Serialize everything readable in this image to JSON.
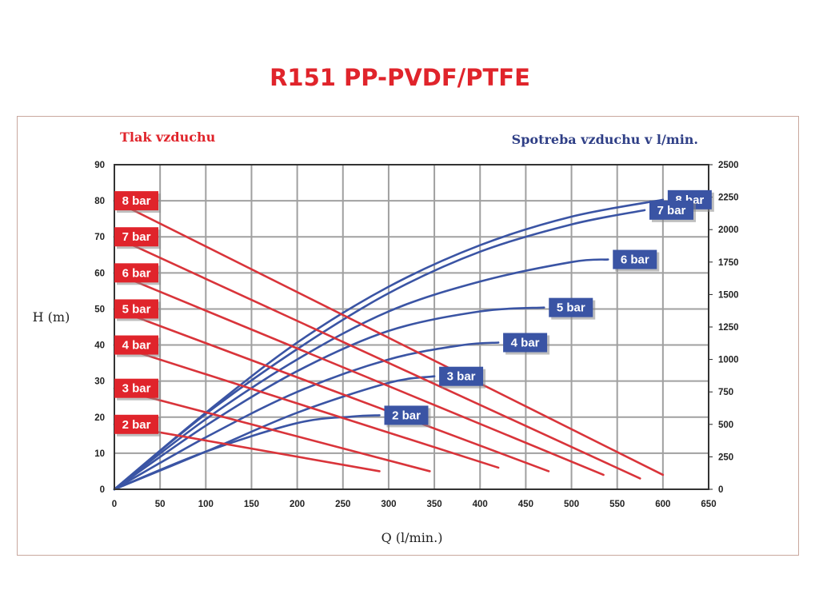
{
  "title": "R151 PP-PVDF/PTFE",
  "chart_data": {
    "type": "line",
    "left_caption": "Tlak vzduchu",
    "right_caption": "Spotreba vzduchu v l/min.",
    "xlabel": "Q (l/min.)",
    "ylabel": "H (m)",
    "xlim": [
      0,
      650
    ],
    "ylim": [
      0,
      90
    ],
    "y2lim": [
      0,
      2500
    ],
    "x_ticks": [
      "0",
      "50",
      "100",
      "150",
      "200",
      "250",
      "300",
      "350",
      "400",
      "450",
      "500",
      "550",
      "600",
      "650"
    ],
    "y_ticks": [
      "0",
      "10",
      "20",
      "30",
      "40",
      "50",
      "60",
      "70",
      "80",
      "90"
    ],
    "y2_ticks": [
      "0",
      "250",
      "500",
      "750",
      "1000",
      "1250",
      "1500",
      "1750",
      "2000",
      "2250",
      "2500"
    ],
    "grid": true,
    "head_series": [
      {
        "name": "8 bar",
        "x": [
          0,
          600
        ],
        "y": [
          80,
          4
        ]
      },
      {
        "name": "7 bar",
        "x": [
          0,
          575
        ],
        "y": [
          70,
          3
        ]
      },
      {
        "name": "6 bar",
        "x": [
          0,
          535
        ],
        "y": [
          60,
          4
        ]
      },
      {
        "name": "5 bar",
        "x": [
          0,
          475
        ],
        "y": [
          50,
          5
        ]
      },
      {
        "name": "4 bar",
        "x": [
          0,
          420
        ],
        "y": [
          40,
          6
        ]
      },
      {
        "name": "3 bar",
        "x": [
          0,
          345
        ],
        "y": [
          28,
          5
        ]
      },
      {
        "name": "2 bar",
        "x": [
          0,
          290
        ],
        "y": [
          18,
          5
        ]
      }
    ],
    "air_series": [
      {
        "name": "8 bar",
        "x": [
          0,
          100,
          200,
          300,
          400,
          500,
          600
        ],
        "y": [
          0,
          590,
          1130,
          1560,
          1880,
          2100,
          2230
        ]
      },
      {
        "name": "7 bar",
        "x": [
          0,
          100,
          200,
          300,
          400,
          500,
          580
        ],
        "y": [
          0,
          580,
          1080,
          1510,
          1830,
          2040,
          2150
        ]
      },
      {
        "name": "6 bar",
        "x": [
          0,
          100,
          200,
          300,
          400,
          500,
          540
        ],
        "y": [
          0,
          540,
          1000,
          1370,
          1600,
          1750,
          1770
        ]
      },
      {
        "name": "5 bar",
        "x": [
          0,
          100,
          200,
          300,
          400,
          470
        ],
        "y": [
          0,
          490,
          910,
          1220,
          1370,
          1400
        ]
      },
      {
        "name": "4 bar",
        "x": [
          0,
          100,
          200,
          300,
          380,
          420
        ],
        "y": [
          0,
          400,
          750,
          1000,
          1110,
          1130
        ]
      },
      {
        "name": "3 bar",
        "x": [
          0,
          100,
          200,
          300,
          350
        ],
        "y": [
          0,
          290,
          590,
          820,
          870
        ]
      },
      {
        "name": "2 bar",
        "x": [
          0,
          100,
          200,
          260,
          290
        ],
        "y": [
          0,
          290,
          510,
          560,
          570
        ]
      }
    ],
    "head_label_color": "#e0242b",
    "air_label_color": "#3a54a4",
    "head_line_color": "#d9343a",
    "air_line_color": "#3a54a4"
  }
}
